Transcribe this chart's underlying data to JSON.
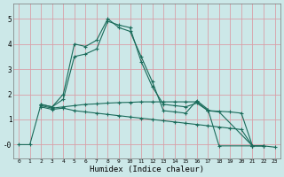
{
  "xlabel": "Humidex (Indice chaleur)",
  "bg_color": "#cce8e8",
  "grid_color": "#d8a0a8",
  "line_color": "#1a6b5a",
  "xlim_min": -0.5,
  "xlim_max": 23.5,
  "ylim_min": -0.55,
  "ylim_max": 5.6,
  "yticks": [
    0,
    1,
    2,
    3,
    4,
    5
  ],
  "ytick_labels": [
    "-0",
    "1",
    "2",
    "3",
    "4",
    "5"
  ],
  "xticks": [
    0,
    1,
    2,
    3,
    4,
    5,
    6,
    7,
    8,
    9,
    10,
    11,
    12,
    13,
    14,
    15,
    16,
    17,
    18,
    19,
    20,
    21,
    22,
    23
  ],
  "curve1_x": [
    0,
    1,
    2,
    3,
    4,
    5,
    6,
    7,
    8,
    9,
    10,
    11,
    12,
    13,
    14,
    15,
    16,
    17,
    18,
    21
  ],
  "curve1_y": [
    0,
    0,
    1.6,
    1.5,
    2.0,
    4.0,
    3.9,
    4.15,
    5.0,
    4.65,
    4.5,
    3.5,
    2.5,
    1.35,
    1.3,
    1.25,
    1.75,
    1.4,
    -0.05,
    -0.05
  ],
  "curve2_x": [
    2,
    3,
    4,
    5,
    6,
    7,
    8,
    9,
    10,
    11,
    12,
    13,
    14,
    15,
    16,
    17,
    18,
    21,
    22
  ],
  "curve2_y": [
    1.6,
    1.5,
    1.8,
    3.5,
    3.6,
    3.8,
    4.9,
    4.75,
    4.65,
    3.3,
    2.3,
    1.6,
    1.55,
    1.5,
    1.65,
    1.35,
    1.3,
    -0.05,
    -0.05
  ],
  "curve3_x": [
    2,
    3,
    4,
    5,
    6,
    7,
    8,
    9,
    10,
    11,
    12,
    13,
    14,
    15,
    16,
    17,
    19,
    20,
    21,
    22
  ],
  "curve3_y": [
    1.55,
    1.45,
    1.5,
    1.55,
    1.6,
    1.62,
    1.65,
    1.67,
    1.68,
    1.7,
    1.7,
    1.7,
    1.7,
    1.7,
    1.7,
    1.35,
    1.3,
    1.25,
    -0.05,
    -0.05
  ],
  "curve4_x": [
    2,
    3,
    4,
    5,
    6,
    7,
    8,
    9,
    10,
    11,
    12,
    13,
    14,
    15,
    16,
    17,
    18,
    19,
    20,
    21,
    22,
    23
  ],
  "curve4_y": [
    1.5,
    1.4,
    1.45,
    1.35,
    1.3,
    1.25,
    1.2,
    1.15,
    1.1,
    1.05,
    1.0,
    0.95,
    0.9,
    0.85,
    0.8,
    0.75,
    0.7,
    0.65,
    0.6,
    -0.05,
    -0.05,
    -0.1
  ]
}
